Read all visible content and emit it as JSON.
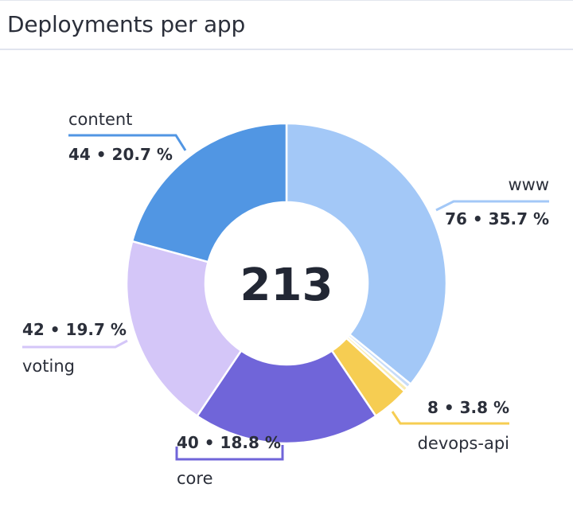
{
  "widget": {
    "title": "Deployments per app"
  },
  "chart_data": {
    "type": "pie",
    "title": "Deployments per app",
    "total": "213",
    "start_angle_deg": 0,
    "direction": "clockwise",
    "slices": [
      {
        "name": "www",
        "value": 76,
        "label": "76 • 35.7 %",
        "color": "#a3c8f7"
      },
      {
        "name": "",
        "value": 1,
        "label": "",
        "color": "#c7dcf8"
      },
      {
        "name": "",
        "value": 1,
        "label": "",
        "color": "#f9ecb3"
      },
      {
        "name": "devops-api",
        "value": 8,
        "label": "8 • 3.8 %",
        "color": "#f6cd52"
      },
      {
        "name": "core",
        "value": 40,
        "label": "40 • 18.8 %",
        "color": "#7065d9"
      },
      {
        "name": "voting",
        "value": 42,
        "label": "42 • 19.7 %",
        "color": "#d4c6f8"
      },
      {
        "name": "content",
        "value": 44,
        "label": "44 • 20.7 %",
        "color": "#5196e3"
      }
    ]
  }
}
